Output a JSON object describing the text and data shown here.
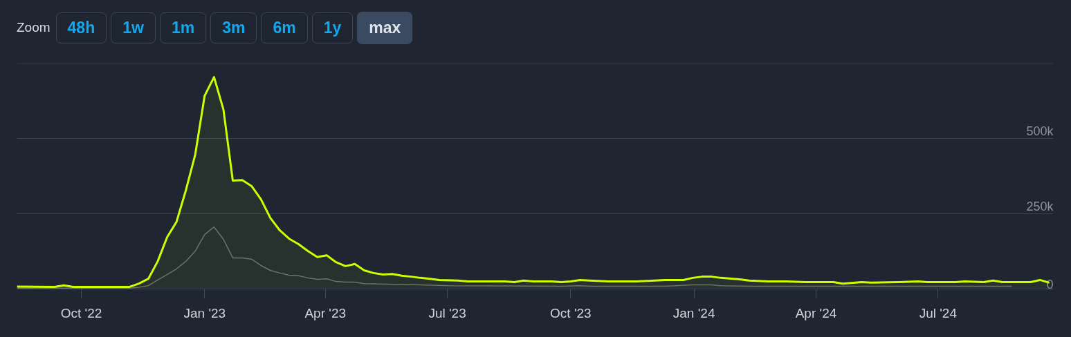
{
  "chart_data": {
    "type": "area",
    "annotations": [
      "Zoom",
      "48h",
      "1w",
      "1m",
      "3m",
      "6m",
      "1y",
      "max"
    ],
    "xlim": [
      "2022-08-14",
      "2024-09-25"
    ],
    "xticks": [
      {
        "value": "2022-10-01",
        "label": "Oct '22"
      },
      {
        "value": "2023-01-01",
        "label": "Jan '23"
      },
      {
        "value": "2023-04-01",
        "label": "Apr '23"
      },
      {
        "value": "2023-07-01",
        "label": "Jul '23"
      },
      {
        "value": "2023-10-01",
        "label": "Oct '23"
      },
      {
        "value": "2024-01-01",
        "label": "Jan '24"
      },
      {
        "value": "2024-04-01",
        "label": "Apr '24"
      },
      {
        "value": "2024-07-01",
        "label": "Jul '24"
      }
    ],
    "ylim": [
      0,
      750000
    ],
    "yticks": [
      {
        "value": 0,
        "label": "0"
      },
      {
        "value": 250000,
        "label": "250k"
      },
      {
        "value": 500000,
        "label": "500k"
      },
      {
        "value": 750000,
        "label": null
      }
    ],
    "grid": "y",
    "marker": "none",
    "line_style": "solid",
    "series": [
      {
        "type": "line",
        "color": "#6b6b6b",
        "x": [
          "2022-08-14",
          "2022-11-06",
          "2022-11-13",
          "2022-11-20",
          "2022-11-27",
          "2022-12-04",
          "2022-12-11",
          "2022-12-18",
          "2022-12-25",
          "2023-01-01",
          "2023-01-08",
          "2023-01-15",
          "2023-01-22",
          "2023-01-29",
          "2023-02-05",
          "2023-02-12",
          "2023-02-19",
          "2023-02-26",
          "2023-03-05",
          "2023-03-12",
          "2023-03-19",
          "2023-03-26",
          "2023-04-02",
          "2023-04-09",
          "2023-04-16",
          "2023-04-23",
          "2023-04-30",
          "2023-06-11",
          "2023-07-02",
          "2023-09-24",
          "2023-10-08",
          "2023-10-15",
          "2023-12-10",
          "2023-12-31",
          "2024-01-14",
          "2024-01-21",
          "2024-02-11",
          "2024-08-25"
        ],
        "values": [
          3000,
          3000,
          6000,
          11000,
          30000,
          48000,
          67000,
          92000,
          126000,
          181000,
          206000,
          165000,
          103000,
          103000,
          99000,
          78000,
          62000,
          53000,
          46000,
          44000,
          37000,
          32000,
          34000,
          25000,
          23000,
          23000,
          18000,
          14000,
          11000,
          9000,
          11000,
          9000,
          9000,
          14000,
          14000,
          11000,
          9000,
          9000
        ]
      },
      {
        "color": "#ccff00",
        "x": [
          "2022-08-14",
          "2022-09-11",
          "2022-09-18",
          "2022-09-25",
          "2022-11-06",
          "2022-11-13",
          "2022-11-20",
          "2022-11-27",
          "2022-12-04",
          "2022-12-11",
          "2022-12-18",
          "2022-12-25",
          "2023-01-01",
          "2023-01-08",
          "2023-01-15",
          "2023-01-22",
          "2023-01-29",
          "2023-02-05",
          "2023-02-12",
          "2023-02-19",
          "2023-02-26",
          "2023-03-05",
          "2023-03-12",
          "2023-03-19",
          "2023-03-26",
          "2023-04-02",
          "2023-04-09",
          "2023-04-16",
          "2023-04-23",
          "2023-04-30",
          "2023-05-07",
          "2023-05-14",
          "2023-05-21",
          "2023-05-28",
          "2023-06-04",
          "2023-06-11",
          "2023-06-18",
          "2023-06-25",
          "2023-07-09",
          "2023-07-16",
          "2023-07-30",
          "2023-08-13",
          "2023-08-20",
          "2023-08-27",
          "2023-09-03",
          "2023-09-17",
          "2023-09-24",
          "2023-10-01",
          "2023-10-08",
          "2023-10-15",
          "2023-10-29",
          "2023-11-19",
          "2023-12-03",
          "2023-12-10",
          "2023-12-24",
          "2023-12-31",
          "2024-01-07",
          "2024-01-14",
          "2024-01-21",
          "2024-02-04",
          "2024-02-11",
          "2024-02-25",
          "2024-03-10",
          "2024-03-24",
          "2024-03-31",
          "2024-04-14",
          "2024-04-21",
          "2024-05-05",
          "2024-05-12",
          "2024-06-02",
          "2024-06-16",
          "2024-06-23",
          "2024-07-14",
          "2024-07-21",
          "2024-08-04",
          "2024-08-11",
          "2024-08-18",
          "2024-09-08",
          "2024-09-15",
          "2024-09-22"
        ],
        "values": [
          8000,
          7000,
          12000,
          7000,
          7000,
          18000,
          34000,
          92000,
          172000,
          223000,
          328000,
          447000,
          642000,
          704000,
          596000,
          360000,
          362000,
          342000,
          298000,
          236000,
          195000,
          167000,
          149000,
          126000,
          106000,
          112000,
          89000,
          76000,
          83000,
          62000,
          53000,
          48000,
          50000,
          44000,
          41000,
          37000,
          34000,
          30000,
          28000,
          25000,
          25000,
          25000,
          23000,
          28000,
          25000,
          25000,
          23000,
          25000,
          30000,
          28000,
          25000,
          25000,
          28000,
          30000,
          30000,
          37000,
          41000,
          41000,
          37000,
          32000,
          28000,
          25000,
          25000,
          23000,
          23000,
          23000,
          18000,
          23000,
          21000,
          23000,
          25000,
          23000,
          23000,
          25000,
          23000,
          28000,
          23000,
          23000,
          30000,
          21000
        ]
      }
    ]
  }
}
